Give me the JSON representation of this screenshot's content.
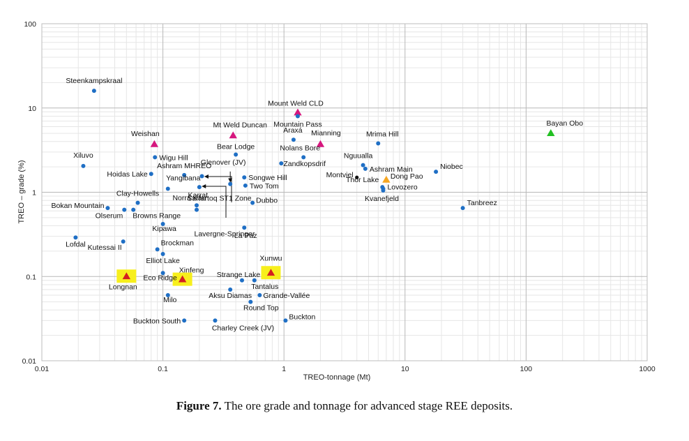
{
  "caption": {
    "label": "Figure 7.",
    "text": " The ore grade and tonnage for advanced stage REE deposits."
  },
  "chart_data": {
    "type": "scatter",
    "title": "",
    "xlabel": "TREO-tonnage (Mt)",
    "ylabel": "TREO – grade (%)",
    "xscale": "log",
    "yscale": "log",
    "xlim": [
      0.01,
      1000
    ],
    "ylim": [
      0.01,
      100
    ],
    "x_ticks": [
      "0.01",
      "0.1",
      "1",
      "10",
      "100",
      "1000"
    ],
    "y_ticks": [
      "0.01",
      "0.1",
      "1",
      "10",
      "100"
    ],
    "grid": true,
    "colors": {
      "deposit": "#1f6fc5",
      "magenta_marker": "#d6177e",
      "orange_marker": "#f5a623",
      "green_marker": "#22c022",
      "red_marker": "#d42020",
      "highlight": "#f7ef1c"
    },
    "points": [
      {
        "name": "Steenkampskraal",
        "x": 0.027,
        "y": 16,
        "marker": "dot"
      },
      {
        "name": "Mount Weld CLD",
        "x": 1.3,
        "y": 8.8,
        "marker": "magenta-triangle"
      },
      {
        "name": "Mountain Pass",
        "x": 1.3,
        "y": 8.0,
        "marker": "dot"
      },
      {
        "name": "Bayan Obo",
        "x": 160,
        "y": 5.0,
        "marker": "green-triangle"
      },
      {
        "name": "Mt Weld Duncan",
        "x": 0.38,
        "y": 4.7,
        "marker": "magenta-triangle"
      },
      {
        "name": "Araxá",
        "x": 1.2,
        "y": 4.2,
        "marker": "dot"
      },
      {
        "name": "Mianning",
        "x": 2.0,
        "y": 3.7,
        "marker": "magenta-triangle"
      },
      {
        "name": "Mrima Hill",
        "x": 6.0,
        "y": 3.8,
        "marker": "dot"
      },
      {
        "name": "Weishan",
        "x": 0.085,
        "y": 3.7,
        "marker": "magenta-triangle"
      },
      {
        "name": "Bear Lodge",
        "x": 0.4,
        "y": 2.8,
        "marker": "dot"
      },
      {
        "name": "Wigu Hill",
        "x": 0.086,
        "y": 2.6,
        "marker": "dot"
      },
      {
        "name": "Nolans Bore",
        "x": 1.45,
        "y": 2.6,
        "marker": "dot"
      },
      {
        "name": "Zandkopsdrif",
        "x": 0.95,
        "y": 2.2,
        "marker": "dot"
      },
      {
        "name": "Nguualla",
        "x": 4.5,
        "y": 2.1,
        "marker": "dot"
      },
      {
        "name": "Xiluvo",
        "x": 0.022,
        "y": 2.05,
        "marker": "dot"
      },
      {
        "name": "Ashram Main",
        "x": 4.7,
        "y": 1.9,
        "marker": "dot"
      },
      {
        "name": "Niobec",
        "x": 18,
        "y": 1.75,
        "marker": "dot"
      },
      {
        "name": "Glenover (JV)",
        "x": 0.36,
        "y": 1.25,
        "marker": "dot"
      },
      {
        "name": "Hoidas Lake",
        "x": 0.08,
        "y": 1.65,
        "marker": "dot"
      },
      {
        "name": "Ashram MHREO",
        "x": 0.15,
        "y": 1.6,
        "marker": "dot"
      },
      {
        "name": "Songwe Hill",
        "x": 0.47,
        "y": 1.5,
        "marker": "dot"
      },
      {
        "name": "Montviel",
        "x": 4.0,
        "y": 1.5,
        "marker": "black-dot"
      },
      {
        "name": "Dong Pao",
        "x": 7.0,
        "y": 1.4,
        "marker": "orange-triangle"
      },
      {
        "name": "Thor Lake",
        "x": 6.5,
        "y": 1.15,
        "marker": "dot"
      },
      {
        "name": "Lovozero",
        "x": 6.6,
        "y": 1.1,
        "marker": "dot"
      },
      {
        "name": "Yangibana",
        "x": 0.11,
        "y": 1.1,
        "marker": "dot"
      },
      {
        "name": "Karrat",
        "x": 0.2,
        "y": 1.15,
        "marker": "dot"
      },
      {
        "name": "Two Tom",
        "x": 0.48,
        "y": 1.2,
        "marker": "dot"
      },
      {
        "name": "Sarfartoq ST1 Zone",
        "x": 0.21,
        "y": 1.55,
        "marker": "dot"
      },
      {
        "name": "Clay-Howells",
        "x": 0.062,
        "y": 0.75,
        "marker": "dot"
      },
      {
        "name": "Dubbo",
        "x": 0.55,
        "y": 0.75,
        "marker": "dot"
      },
      {
        "name": "Norra Kärr",
        "x": 0.19,
        "y": 0.7,
        "marker": "dot"
      },
      {
        "name": "Kvanefjeld",
        "x": 6.6,
        "y": 1.05,
        "marker": "dot"
      },
      {
        "name": "Tanbreez",
        "x": 30,
        "y": 0.65,
        "marker": "dot"
      },
      {
        "name": "Bokan Mountain",
        "x": 0.035,
        "y": 0.65,
        "marker": "dot"
      },
      {
        "name": "Olserum",
        "x": 0.048,
        "y": 0.62,
        "marker": "dot"
      },
      {
        "name": "Browns Range",
        "x": 0.057,
        "y": 0.62,
        "marker": "dot"
      },
      {
        "name": "Lavergne-Springer",
        "x": 0.19,
        "y": 0.62,
        "marker": "dot"
      },
      {
        "name": "Kipawa",
        "x": 0.1,
        "y": 0.42,
        "marker": "dot"
      },
      {
        "name": "La Paz",
        "x": 0.47,
        "y": 0.38,
        "marker": "dot"
      },
      {
        "name": "Lofdal",
        "x": 0.019,
        "y": 0.29,
        "marker": "dot"
      },
      {
        "name": "Kutessai II",
        "x": 0.047,
        "y": 0.26,
        "marker": "dot"
      },
      {
        "name": "Brockman",
        "x": 0.09,
        "y": 0.21,
        "marker": "dot"
      },
      {
        "name": "Elliot Lake",
        "x": 0.1,
        "y": 0.185,
        "marker": "dot"
      },
      {
        "name": "Xunwu",
        "x": 0.78,
        "y": 0.11,
        "marker": "red-triangle-highlight"
      },
      {
        "name": "Eco Ridge",
        "x": 0.1,
        "y": 0.11,
        "marker": "dot"
      },
      {
        "name": "Longnan",
        "x": 0.05,
        "y": 0.1,
        "marker": "red-triangle-highlight"
      },
      {
        "name": "Xinfeng",
        "x": 0.145,
        "y": 0.092,
        "marker": "red-triangle-highlight"
      },
      {
        "name": "Strange Lake",
        "x": 0.45,
        "y": 0.09,
        "marker": "dot"
      },
      {
        "name": "Tantalus",
        "x": 0.57,
        "y": 0.09,
        "marker": "dot"
      },
      {
        "name": "Aksu Diamas",
        "x": 0.36,
        "y": 0.07,
        "marker": "dot"
      },
      {
        "name": "Grande-Vallée",
        "x": 0.63,
        "y": 0.06,
        "marker": "dot"
      },
      {
        "name": "Milo",
        "x": 0.11,
        "y": 0.06,
        "marker": "dot"
      },
      {
        "name": "Round Top",
        "x": 0.53,
        "y": 0.05,
        "marker": "dot"
      },
      {
        "name": "Buckton South",
        "x": 0.15,
        "y": 0.03,
        "marker": "dot"
      },
      {
        "name": "Charley Creek (JV)",
        "x": 0.27,
        "y": 0.03,
        "marker": "dot"
      },
      {
        "name": "Buckton",
        "x": 1.03,
        "y": 0.03,
        "marker": "dot"
      }
    ]
  }
}
